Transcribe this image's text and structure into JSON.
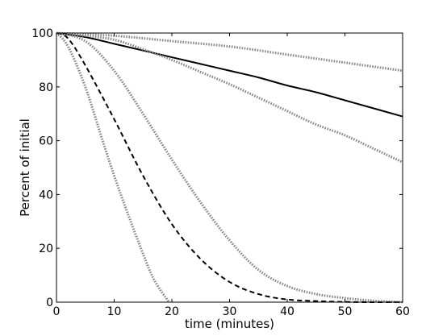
{
  "chart_data": {
    "type": "line",
    "title": "",
    "xlabel": "time (minutes)",
    "ylabel": "Percent of initial",
    "xlim": [
      0,
      60
    ],
    "ylim": [
      0,
      100
    ],
    "xticks": [
      0,
      10,
      20,
      30,
      40,
      50,
      60
    ],
    "yticks": [
      0,
      20,
      40,
      60,
      80,
      100
    ],
    "grid": false,
    "legend": "none",
    "series": [
      {
        "style": "solid",
        "color": "#000000",
        "x": [
          0,
          5,
          10,
          15,
          20,
          25,
          30,
          35,
          40,
          45,
          50,
          55,
          60
        ],
        "y": [
          100,
          98.5,
          96,
          93.5,
          91,
          88.5,
          86,
          83.5,
          80.5,
          78,
          75,
          72,
          69
        ]
      },
      {
        "style": "dashed",
        "color": "#000000",
        "x": [
          0,
          2,
          5,
          10,
          15,
          20,
          25,
          30,
          35,
          40,
          45,
          50,
          55,
          60
        ],
        "y": [
          100,
          98,
          88,
          68,
          47,
          29,
          16,
          7.5,
          3,
          1,
          0.4,
          0.1,
          0,
          0
        ]
      },
      {
        "style": "dotted",
        "color": "#888888",
        "x": [
          0,
          10,
          20,
          30,
          40,
          50,
          60
        ],
        "y": [
          100,
          99,
          97,
          95,
          92,
          89,
          86
        ]
      },
      {
        "style": "dotted",
        "color": "#888888",
        "x": [
          0,
          5,
          10,
          15,
          20,
          25,
          30,
          35,
          40,
          45,
          50,
          55,
          60
        ],
        "y": [
          100,
          99,
          97.5,
          94,
          90,
          85.5,
          81,
          76,
          71,
          66,
          62,
          57,
          52
        ]
      },
      {
        "style": "dotted",
        "color": "#888888",
        "x": [
          0,
          5,
          10,
          15,
          20,
          25,
          30,
          35,
          40,
          45,
          50,
          55,
          60
        ],
        "y": [
          100,
          97,
          86,
          70,
          53,
          37,
          23,
          12,
          6,
          3,
          1.5,
          0.5,
          0
        ]
      },
      {
        "style": "dotted",
        "color": "#888888",
        "x": [
          0,
          2,
          5,
          8,
          10,
          12,
          15,
          17,
          19.5
        ],
        "y": [
          100,
          95,
          80,
          60,
          47,
          35,
          18,
          8,
          0
        ]
      }
    ]
  }
}
